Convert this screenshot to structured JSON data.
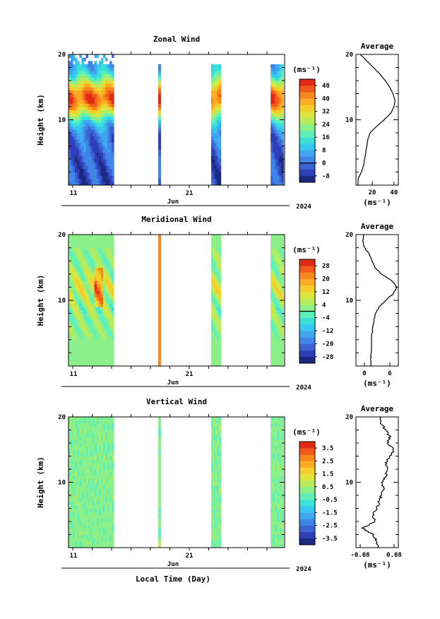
{
  "figure": {
    "year_label": "2024",
    "month_label": "Jun",
    "xlabel": "Local Time (Day)",
    "units_label": "(ms⁻¹)",
    "avg_title": "Average",
    "height_label": "Height (km)"
  },
  "chart_data": [
    {
      "type": "heatmap",
      "title": "Zonal Wind",
      "ylabel": "Height (km)",
      "ylim": [
        0,
        20
      ],
      "yticks": [
        10,
        20
      ],
      "xticks": [
        "11",
        "21"
      ],
      "colorbar": {
        "label": "(ms⁻¹)",
        "ticks": [
          -8,
          0,
          8,
          16,
          24,
          32,
          40,
          48
        ],
        "range": [
          -12,
          52
        ],
        "zero_line": 0
      },
      "data_windows": [
        [
          0.0,
          0.21
        ],
        [
          0.415,
          0.427
        ],
        [
          0.66,
          0.705
        ],
        [
          0.935,
          0.995
        ]
      ],
      "profile": {
        "title": "Average",
        "xlabel": "(ms⁻¹)",
        "xticks": [
          20,
          40
        ],
        "xlim": [
          5,
          44
        ],
        "heights": [
          1,
          2,
          3,
          4,
          5,
          6,
          7,
          8,
          9,
          10,
          11,
          12,
          13,
          14,
          15,
          16,
          17,
          18,
          19,
          20
        ],
        "values": [
          7,
          10,
          12,
          13,
          14,
          15,
          16,
          18,
          24,
          31,
          37,
          40,
          41,
          39,
          36,
          32,
          27,
          21,
          15,
          9
        ]
      }
    },
    {
      "type": "heatmap",
      "title": "Meridional Wind",
      "ylabel": "Height (km)",
      "ylim": [
        0,
        20
      ],
      "yticks": [
        10,
        20
      ],
      "xticks": [
        "11",
        "21"
      ],
      "colorbar": {
        "label": "(ms⁻¹)",
        "ticks": [
          -28,
          -20,
          -12,
          -4,
          4,
          12,
          20,
          28
        ],
        "range": [
          -32,
          32
        ],
        "zero_line": 0
      },
      "data_windows": [
        [
          0.0,
          0.21
        ],
        [
          0.415,
          0.427
        ],
        [
          0.66,
          0.705
        ],
        [
          0.935,
          0.995
        ]
      ],
      "profile": {
        "title": "Average",
        "xlabel": "(ms⁻¹)",
        "xticks": [
          0,
          6
        ],
        "xlim": [
          -2,
          8
        ],
        "heights": [
          1,
          2,
          3,
          4,
          5,
          6,
          7,
          8,
          9,
          10,
          11,
          12,
          13,
          14,
          15,
          16,
          17,
          18,
          19,
          20
        ],
        "values": [
          1.5,
          1.6,
          1.7,
          1.6,
          1.8,
          2.0,
          2.2,
          2.6,
          3.5,
          5.0,
          6.8,
          7.6,
          6.5,
          4.0,
          2.5,
          1.8,
          1.2,
          0.0,
          -0.4,
          -0.2
        ]
      }
    },
    {
      "type": "heatmap",
      "title": "Vertical Wind",
      "ylabel": "Height (km)",
      "ylim": [
        0,
        20
      ],
      "yticks": [
        10,
        20
      ],
      "xticks": [
        "11",
        "21"
      ],
      "colorbar": {
        "label": "(ms⁻¹)",
        "ticks": [
          -3.5,
          -2.5,
          -1.5,
          -0.5,
          0.5,
          1.5,
          2.5,
          3.5
        ],
        "range": [
          -4,
          4
        ],
        "zero_line": null
      },
      "data_windows": [
        [
          0.0,
          0.21
        ],
        [
          0.415,
          0.427
        ],
        [
          0.66,
          0.705
        ],
        [
          0.935,
          0.995
        ]
      ],
      "profile": {
        "title": "Average",
        "xlabel": "(ms⁻¹)",
        "xticks": [
          -0.08,
          0.08
        ],
        "xtick_labels": [
          "-0.08",
          "0.08"
        ],
        "xlim": [
          -0.1,
          0.1
        ],
        "heights": [
          1,
          2,
          3,
          4,
          5,
          6,
          7,
          8,
          9,
          10,
          11,
          12,
          13,
          14,
          15,
          16,
          17,
          18,
          19,
          20
        ],
        "values": [
          0.0,
          -0.02,
          -0.07,
          -0.01,
          -0.02,
          0.0,
          0.01,
          0.02,
          0.03,
          0.02,
          0.04,
          0.05,
          0.04,
          0.06,
          0.08,
          0.05,
          0.06,
          0.04,
          0.02,
          0.01
        ]
      }
    }
  ]
}
